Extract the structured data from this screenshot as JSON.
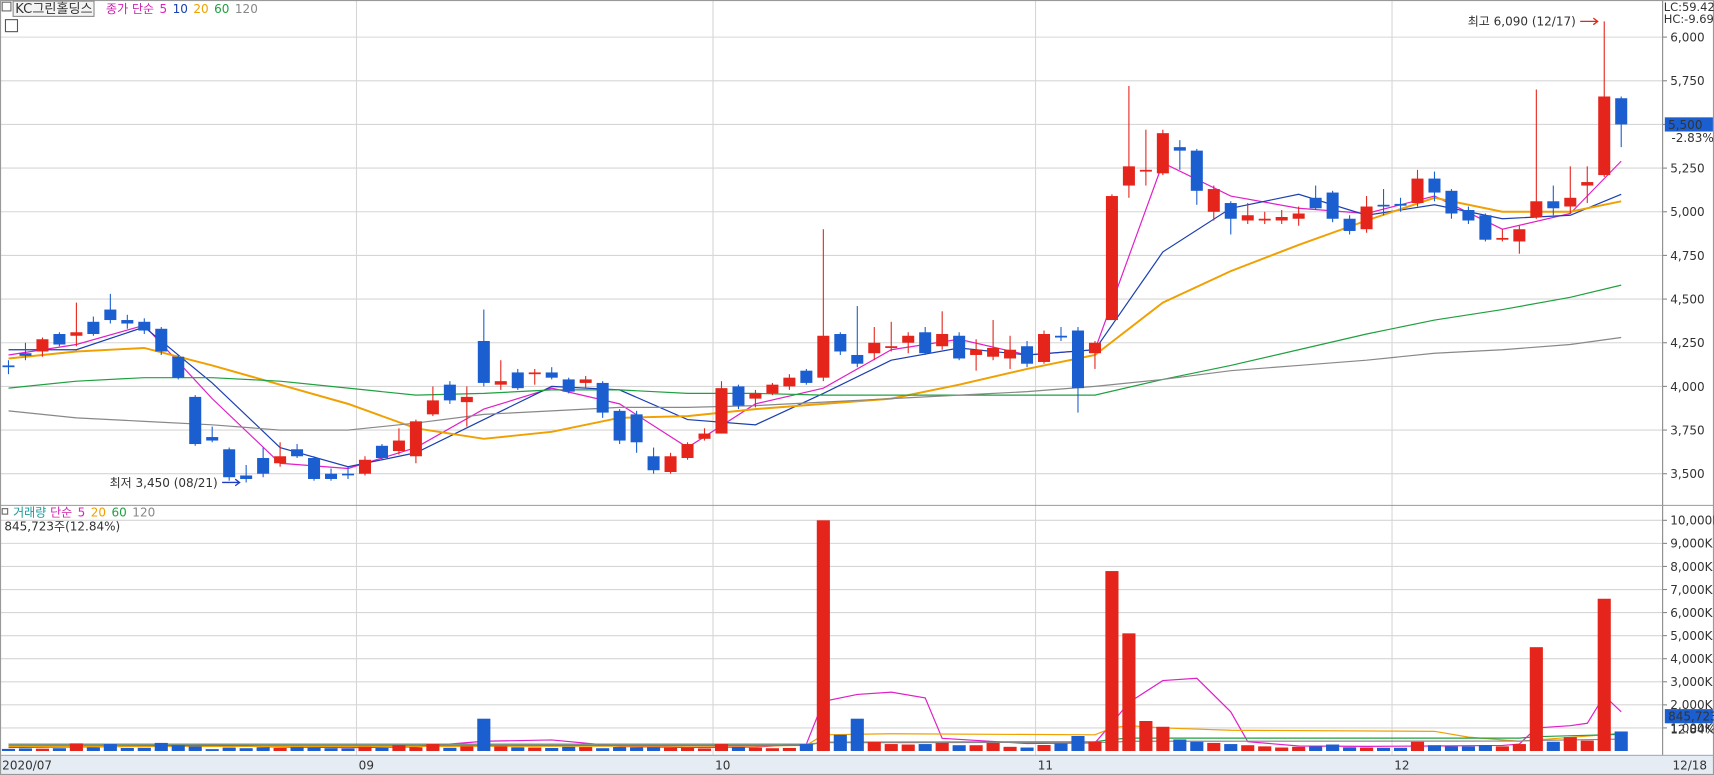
{
  "chart_data": [
    {
      "type": "candlestick",
      "title": "KC그린홀딩스",
      "indicator_label": "종가",
      "ma_method": "단순",
      "up_color": "#e5241b",
      "down_color": "#1b5ecf",
      "categories": [
        "2020/07",
        null,
        null,
        null,
        null,
        null,
        null,
        null,
        null,
        null,
        null,
        null,
        null,
        null,
        null,
        null,
        null,
        null,
        null,
        null,
        null,
        "09",
        null,
        null,
        null,
        null,
        null,
        null,
        null,
        null,
        null,
        null,
        null,
        null,
        null,
        null,
        null,
        null,
        null,
        null,
        null,
        null,
        "10",
        null,
        null,
        null,
        null,
        null,
        null,
        null,
        null,
        null,
        null,
        null,
        null,
        null,
        null,
        null,
        null,
        null,
        null,
        "11",
        null,
        null,
        null,
        null,
        null,
        null,
        null,
        null,
        null,
        null,
        null,
        null,
        null,
        null,
        null,
        null,
        null,
        null,
        null,
        null,
        "12",
        null,
        null,
        null,
        null,
        null,
        null,
        null,
        null,
        null,
        null,
        null,
        null,
        null
      ],
      "open": [
        4120,
        4190,
        4200,
        4300,
        4290,
        4370,
        4440,
        4380,
        4370,
        4330,
        4170,
        3940,
        3710,
        3640,
        3490,
        3590,
        3560,
        3640,
        3590,
        3500,
        3500,
        3500,
        3660,
        3630,
        3600,
        3840,
        4010,
        3910,
        4260,
        4010,
        4080,
        4070,
        4080,
        4040,
        4020,
        4020,
        3860,
        3840,
        3600,
        3510,
        3590,
        3700,
        3730,
        4000,
        3930,
        3960,
        4000,
        4090,
        4050,
        4300,
        4180,
        4190,
        4220,
        4250,
        4310,
        4230,
        4290,
        4180,
        4170,
        4160,
        4230,
        4140,
        4290,
        4320,
        4190,
        4380,
        5150,
        5230,
        5220,
        5370,
        5350,
        5000,
        5050,
        4950,
        4950,
        4950,
        4960,
        5080,
        5110,
        4960,
        4900,
        5040,
        5045,
        5050,
        5190,
        5120,
        5010,
        4980,
        4840,
        4830,
        4970,
        5060,
        5030,
        5150,
        5210,
        5650
      ],
      "high": [
        4150,
        4250,
        4280,
        4310,
        4480,
        4400,
        4530,
        4410,
        4390,
        4340,
        4180,
        3950,
        3770,
        3650,
        3550,
        3650,
        3680,
        3670,
        3600,
        3530,
        3540,
        3600,
        3670,
        3760,
        3810,
        4000,
        4030,
        4000,
        4440,
        4150,
        4100,
        4100,
        4110,
        4050,
        4060,
        4030,
        3870,
        3860,
        3650,
        3620,
        3680,
        3760,
        4030,
        4010,
        3980,
        4020,
        4070,
        4100,
        4900,
        4310,
        4460,
        4340,
        4370,
        4310,
        4340,
        4430,
        4310,
        4270,
        4380,
        4290,
        4260,
        4320,
        4340,
        4340,
        4260,
        5100,
        5720,
        5470,
        5470,
        5410,
        5360,
        5150,
        5060,
        5050,
        5000,
        5010,
        5030,
        5150,
        5120,
        4980,
        5090,
        5130,
        5080,
        5240,
        5230,
        5130,
        5030,
        4990,
        4900,
        4920,
        5700,
        5150,
        5260,
        5260,
        6090,
        5660
      ],
      "low": [
        4070,
        4150,
        4170,
        4230,
        4230,
        4290,
        4360,
        4330,
        4300,
        4180,
        4040,
        3660,
        3680,
        3460,
        3450,
        3480,
        3540,
        3590,
        3460,
        3460,
        3470,
        3490,
        3580,
        3610,
        3560,
        3830,
        3900,
        3770,
        4000,
        3980,
        3980,
        4010,
        4040,
        3960,
        3990,
        3820,
        3670,
        3620,
        3500,
        3500,
        3580,
        3690,
        3730,
        3870,
        3880,
        3950,
        3980,
        4010,
        4030,
        4180,
        4110,
        4150,
        4200,
        4190,
        4180,
        4210,
        4150,
        4090,
        4150,
        4100,
        4110,
        4130,
        4260,
        3850,
        4100,
        4380,
        5080,
        5150,
        5210,
        5240,
        5040,
        4950,
        4870,
        4930,
        4930,
        4930,
        4920,
        5010,
        4940,
        4870,
        4880,
        4980,
        5000,
        5030,
        5060,
        4960,
        4930,
        4830,
        4830,
        4760,
        4960,
        4980,
        4990,
        5050,
        5200,
        5370
      ],
      "close": [
        4110,
        4175,
        4270,
        4240,
        4310,
        4300,
        4380,
        4360,
        4320,
        4200,
        4050,
        3670,
        3690,
        3480,
        3470,
        3500,
        3600,
        3600,
        3470,
        3470,
        3495,
        3580,
        3590,
        3690,
        3800,
        3920,
        3920,
        3940,
        4020,
        4030,
        3990,
        4080,
        4050,
        3970,
        4040,
        3850,
        3690,
        3680,
        3520,
        3600,
        3670,
        3730,
        3990,
        3890,
        3960,
        4010,
        4050,
        4020,
        4290,
        4200,
        4130,
        4250,
        4230,
        4290,
        4190,
        4300,
        4160,
        4210,
        4220,
        4210,
        4130,
        4300,
        4280,
        3990,
        4250,
        5090,
        5260,
        5240,
        5450,
        5350,
        5120,
        5130,
        4960,
        4980,
        4960,
        4970,
        4990,
        5020,
        4960,
        4890,
        5030,
        5030,
        5035,
        5190,
        5110,
        4990,
        4950,
        4840,
        4850,
        4900,
        5060,
        5020,
        5080,
        5170,
        5660,
        5500
      ],
      "ylim": [
        3325,
        6212.5
      ],
      "yticks": [
        {
          "value": 3500,
          "label": "3,500"
        },
        {
          "value": 3750,
          "label": "3,750"
        },
        {
          "value": 4000,
          "label": "4,000"
        },
        {
          "value": 4250,
          "label": "4,250"
        },
        {
          "value": 4500,
          "label": "4,500"
        },
        {
          "value": 4750,
          "label": "4,750"
        },
        {
          "value": 5000,
          "label": "5,000"
        },
        {
          "value": 5250,
          "label": "5,250"
        },
        {
          "value": 5500,
          "label": "5,500"
        },
        {
          "value": 5750,
          "label": "5,750"
        },
        {
          "value": 6000,
          "label": "6,000"
        }
      ],
      "grid": true,
      "ma_series": [
        {
          "name": "5",
          "color": "#e020c8",
          "x": [
            0,
            4,
            8,
            12,
            16,
            20,
            24,
            28,
            32,
            36,
            40,
            44,
            48,
            52,
            56,
            60,
            64,
            68,
            72,
            76,
            80,
            84,
            88,
            92,
            95
          ],
          "values": [
            4180,
            4240,
            4350,
            3930,
            3560,
            3530,
            3650,
            3870,
            3990,
            3900,
            3650,
            3900,
            3990,
            4210,
            4270,
            4180,
            4210,
            5280,
            5090,
            5020,
            4990,
            5090,
            4900,
            4990,
            5290
          ]
        },
        {
          "name": "10",
          "color": "#1a3fb0",
          "x": [
            0,
            4,
            8,
            12,
            16,
            20,
            24,
            28,
            32,
            36,
            40,
            44,
            48,
            52,
            56,
            60,
            64,
            68,
            72,
            76,
            80,
            84,
            88,
            92,
            95
          ],
          "values": [
            4210,
            4210,
            4340,
            4020,
            3650,
            3540,
            3620,
            3810,
            4000,
            3980,
            3810,
            3780,
            3960,
            4150,
            4220,
            4180,
            4210,
            4770,
            5020,
            5100,
            4980,
            5040,
            4960,
            4980,
            5100
          ]
        },
        {
          "name": "20",
          "color": "#f0a000",
          "x": [
            0,
            4,
            8,
            12,
            16,
            20,
            24,
            28,
            32,
            36,
            40,
            44,
            48,
            52,
            56,
            60,
            64,
            68,
            72,
            76,
            80,
            84,
            88,
            92,
            95
          ],
          "values": [
            4160,
            4200,
            4220,
            4120,
            4010,
            3900,
            3760,
            3700,
            3740,
            3820,
            3830,
            3870,
            3900,
            3930,
            4010,
            4100,
            4180,
            4480,
            4660,
            4810,
            4950,
            5080,
            5000,
            5000,
            5060
          ]
        },
        {
          "name": "60",
          "color": "#20a040",
          "x": [
            0,
            4,
            8,
            12,
            16,
            20,
            24,
            28,
            32,
            36,
            40,
            44,
            48,
            52,
            56,
            60,
            64,
            68,
            72,
            76,
            80,
            84,
            88,
            92,
            95
          ],
          "values": [
            3990,
            4030,
            4050,
            4050,
            4030,
            3990,
            3950,
            3960,
            3980,
            3980,
            3960,
            3960,
            3950,
            3950,
            3950,
            3950,
            3950,
            4040,
            4120,
            4210,
            4300,
            4380,
            4440,
            4510,
            4580
          ]
        },
        {
          "name": "120",
          "color": "#888888",
          "x": [
            0,
            4,
            8,
            12,
            16,
            20,
            24,
            28,
            32,
            36,
            40,
            44,
            48,
            52,
            56,
            60,
            64,
            68,
            72,
            76,
            80,
            84,
            88,
            92,
            95
          ],
          "values": [
            3860,
            3820,
            3800,
            3780,
            3750,
            3750,
            3790,
            3840,
            3860,
            3880,
            3880,
            3890,
            3910,
            3930,
            3950,
            3970,
            4000,
            4040,
            4090,
            4120,
            4150,
            4190,
            4210,
            4240,
            4280
          ]
        }
      ],
      "annotations": [
        {
          "text": "최고 6,090 (12/17)",
          "x": 94,
          "y": 6090,
          "color": "#e5241b",
          "side": "high"
        },
        {
          "text": "최저 3,450 (08/21)",
          "x": 14,
          "y": 3450,
          "color": "#1b3fc0",
          "side": "low"
        }
      ],
      "last_price": {
        "value": 5500,
        "label": "5,500"
      },
      "last_change": "-2.83%",
      "lc": "LC:59.42",
      "hc": "HC:-9.69",
      "last_date": "12/18"
    },
    {
      "type": "bar",
      "indicator_label": "거래량",
      "ma_method": "단순",
      "header": "845,723주(12.84%)",
      "values": [
        90000,
        110000,
        100000,
        120000,
        330000,
        150000,
        300000,
        130000,
        140000,
        350000,
        250000,
        200000,
        80000,
        150000,
        120000,
        160000,
        130000,
        150000,
        140000,
        120000,
        110000,
        180000,
        130000,
        250000,
        160000,
        300000,
        140000,
        200000,
        1400000,
        200000,
        160000,
        150000,
        130000,
        180000,
        170000,
        120000,
        170000,
        160000,
        150000,
        140000,
        130000,
        110000,
        300000,
        170000,
        140000,
        120000,
        130000,
        300000,
        10000000,
        700000,
        1400000,
        400000,
        300000,
        280000,
        300000,
        350000,
        250000,
        250000,
        350000,
        180000,
        150000,
        260000,
        320000,
        650000,
        400000,
        7800000,
        5100000,
        1300000,
        1050000,
        500000,
        400000,
        350000,
        300000,
        250000,
        200000,
        150000,
        180000,
        200000,
        280000,
        160000,
        150000,
        140000,
        140000,
        400000,
        250000,
        200000,
        200000,
        250000,
        200000,
        300000,
        4500000,
        400000,
        600000,
        450000,
        6600000,
        845723
      ],
      "ylim": [
        0,
        10600000
      ],
      "yticks": [
        {
          "value": 1000000,
          "label": "1,000K"
        },
        {
          "value": 2000000,
          "label": "2,000K"
        },
        {
          "value": 3000000,
          "label": "3,000K"
        },
        {
          "value": 4000000,
          "label": "4,000K"
        },
        {
          "value": 5000000,
          "label": "5,000K"
        },
        {
          "value": 6000000,
          "label": "6,000K"
        },
        {
          "value": 7000000,
          "label": "7,000K"
        },
        {
          "value": 8000000,
          "label": "8,000K"
        },
        {
          "value": 9000000,
          "label": "9,000K"
        },
        {
          "value": 10000000,
          "label": "10,000K"
        }
      ],
      "grid": true,
      "ma_series": [
        {
          "name": "5",
          "color": "#e020c8",
          "x": [
            0,
            4,
            8,
            12,
            16,
            20,
            24,
            28,
            32,
            36,
            40,
            44,
            47,
            48,
            50,
            52,
            54,
            55,
            60,
            64,
            65,
            66,
            68,
            70,
            72,
            73,
            76,
            80,
            84,
            88,
            89,
            90,
            92,
            93,
            94,
            95
          ],
          "values": [
            150000,
            180000,
            200000,
            250000,
            170000,
            140000,
            180000,
            420000,
            480000,
            200000,
            150000,
            170000,
            300000,
            2150000,
            2450000,
            2550000,
            2300000,
            550000,
            320000,
            350000,
            1200000,
            2100000,
            3050000,
            3150000,
            1700000,
            400000,
            220000,
            200000,
            220000,
            240000,
            300000,
            1000000,
            1100000,
            1200000,
            2400000,
            1700000
          ]
        },
        {
          "name": "20",
          "color": "#f0a000",
          "x": [
            0,
            20,
            44,
            47,
            48,
            52,
            64,
            65,
            66,
            68,
            72,
            84,
            86,
            89,
            90,
            94,
            95
          ],
          "values": [
            200000,
            200000,
            220000,
            240000,
            700000,
            750000,
            700000,
            1000000,
            1100000,
            1000000,
            900000,
            850000,
            600000,
            420000,
            480000,
            700000,
            780000
          ]
        },
        {
          "name": "60",
          "color": "#20a040",
          "x": [
            0,
            47,
            48,
            64,
            65,
            66,
            89,
            90,
            94,
            95
          ],
          "values": [
            250000,
            250000,
            380000,
            400000,
            500000,
            560000,
            560000,
            620000,
            700000,
            720000
          ]
        },
        {
          "name": "120",
          "color": "#888888",
          "x": [
            0,
            47,
            48,
            65,
            66,
            89,
            90,
            94,
            95
          ],
          "values": [
            300000,
            300000,
            360000,
            380000,
            420000,
            430000,
            460000,
            500000,
            520000
          ]
        }
      ],
      "last_volume": {
        "value": 845723,
        "label": "845,723"
      },
      "last_ratio": "12.84%"
    }
  ]
}
